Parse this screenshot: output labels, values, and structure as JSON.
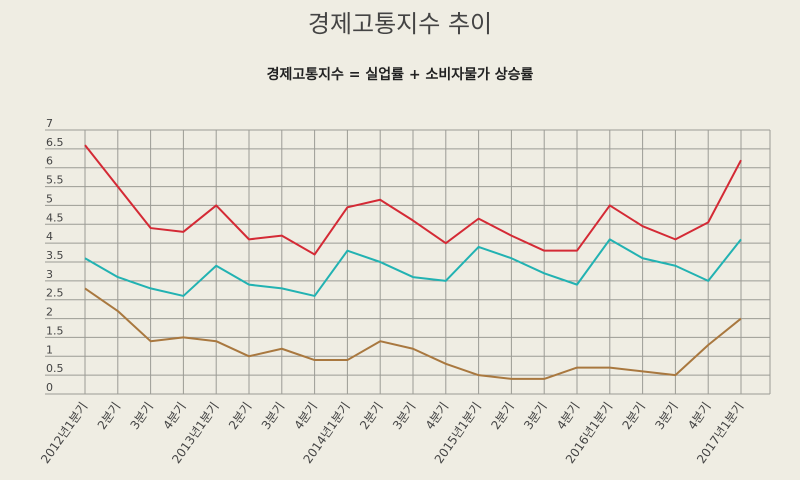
{
  "chart_data": {
    "type": "line",
    "title": "경제고통지수 추이",
    "subtitle": "경제고통지수 = 실업률 + 소비자물가 상승률",
    "categories": [
      "2012년1분기",
      "2분기",
      "3분기",
      "4분기",
      "2013년1분기",
      "2분기",
      "3분기",
      "4분기",
      "2014년1분기",
      "2분기",
      "3분기",
      "4분기",
      "2015년1분기",
      "2분기",
      "3분기",
      "4분기",
      "2016년1분기",
      "2분기",
      "3분기",
      "4분기",
      "2017년1분기"
    ],
    "y_ticks": [
      "0",
      "0.5",
      "1",
      "1.5",
      "2",
      "2.5",
      "3",
      "3.5",
      "4",
      "4.5",
      "5",
      "5.5",
      "6",
      "6.5",
      "7"
    ],
    "ylim": [
      0,
      7
    ],
    "grid": true,
    "series": [
      {
        "color": "#d42a35",
        "values": [
          6.6,
          5.5,
          4.4,
          4.3,
          5.0,
          4.1,
          4.2,
          3.7,
          4.95,
          5.15,
          4.6,
          4.0,
          4.65,
          4.2,
          3.8,
          3.8,
          5.0,
          4.45,
          4.1,
          4.55,
          6.2
        ]
      },
      {
        "color": "#22b2b2",
        "values": [
          3.6,
          3.1,
          2.8,
          2.6,
          3.4,
          2.9,
          2.8,
          2.6,
          3.8,
          3.5,
          3.1,
          3.0,
          3.9,
          3.6,
          3.2,
          2.9,
          4.1,
          3.6,
          3.4,
          3.0,
          4.1
        ]
      },
      {
        "color": "#a9783f",
        "values": [
          2.8,
          2.2,
          1.4,
          1.5,
          1.4,
          1.0,
          1.2,
          0.9,
          0.9,
          1.4,
          1.2,
          0.8,
          0.5,
          0.4,
          0.4,
          0.7,
          0.7,
          0.6,
          0.5,
          1.3,
          2.0
        ]
      }
    ]
  }
}
